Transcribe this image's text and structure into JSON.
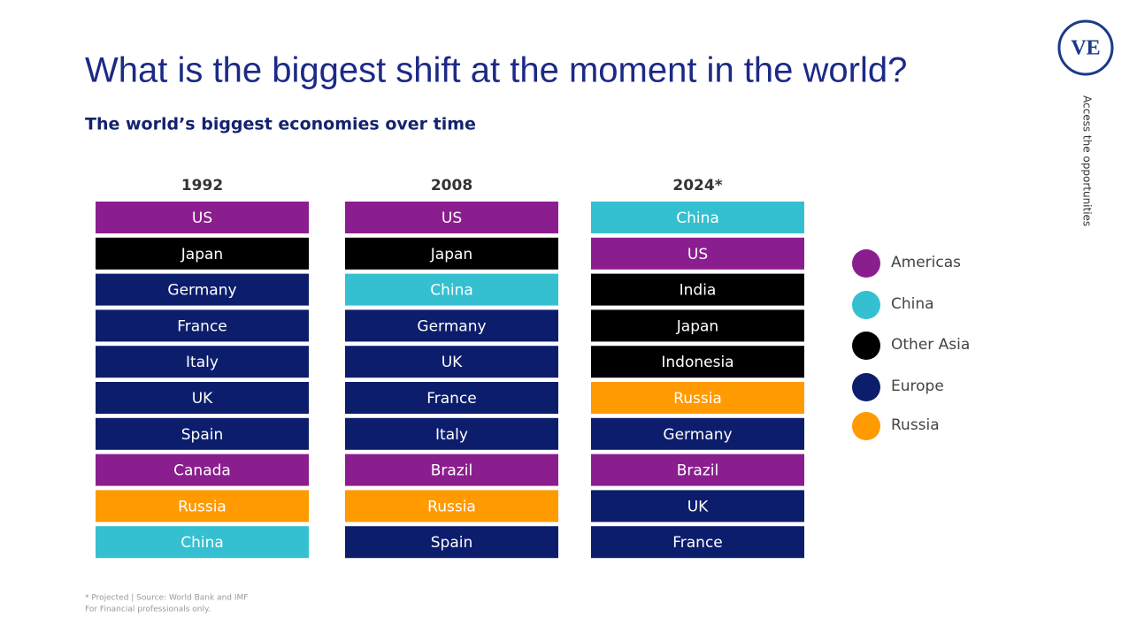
{
  "header": {
    "title": "What is the biggest shift at the moment in the world?",
    "subtitle": "The world’s biggest economies over time",
    "logo": "VE",
    "side_text": "Access the opportunities"
  },
  "legend": [
    {
      "label": "Americas",
      "color": "#8b1e8f"
    },
    {
      "label": "China",
      "color": "#34c0d0"
    },
    {
      "label": "Other Asia",
      "color": "#000000"
    },
    {
      "label": "Europe",
      "color": "#0c1d6c"
    },
    {
      "label": "Russia",
      "color": "#ff9a00"
    }
  ],
  "columns": [
    {
      "year": "1992",
      "items": [
        {
          "label": "US",
          "region": "Americas"
        },
        {
          "label": "Japan",
          "region": "Other Asia"
        },
        {
          "label": "Germany",
          "region": "Europe"
        },
        {
          "label": "France",
          "region": "Europe"
        },
        {
          "label": "Italy",
          "region": "Europe"
        },
        {
          "label": "UK",
          "region": "Europe"
        },
        {
          "label": "Spain",
          "region": "Europe"
        },
        {
          "label": "Canada",
          "region": "Americas"
        },
        {
          "label": "Russia",
          "region": "Russia"
        },
        {
          "label": "China",
          "region": "China"
        }
      ]
    },
    {
      "year": "2008",
      "items": [
        {
          "label": "US",
          "region": "Americas"
        },
        {
          "label": "Japan",
          "region": "Other Asia"
        },
        {
          "label": "China",
          "region": "China"
        },
        {
          "label": "Germany",
          "region": "Europe"
        },
        {
          "label": "UK",
          "region": "Europe"
        },
        {
          "label": "France",
          "region": "Europe"
        },
        {
          "label": "Italy",
          "region": "Europe"
        },
        {
          "label": "Brazil",
          "region": "Americas"
        },
        {
          "label": "Russia",
          "region": "Russia"
        },
        {
          "label": "Spain",
          "region": "Europe"
        }
      ]
    },
    {
      "year": "2024*",
      "items": [
        {
          "label": "China",
          "region": "China"
        },
        {
          "label": "US",
          "region": "Americas"
        },
        {
          "label": "India",
          "region": "Other Asia"
        },
        {
          "label": "Japan",
          "region": "Other Asia"
        },
        {
          "label": "Indonesia",
          "region": "Other Asia"
        },
        {
          "label": "Russia",
          "region": "Russia"
        },
        {
          "label": "Germany",
          "region": "Europe"
        },
        {
          "label": "Brazil",
          "region": "Americas"
        },
        {
          "label": "UK",
          "region": "Europe"
        },
        {
          "label": "France",
          "region": "Europe"
        }
      ]
    }
  ],
  "footer": {
    "source": "* Projected | Source: World Bank and IMF",
    "disclaimer": "For Financial professionals only."
  }
}
